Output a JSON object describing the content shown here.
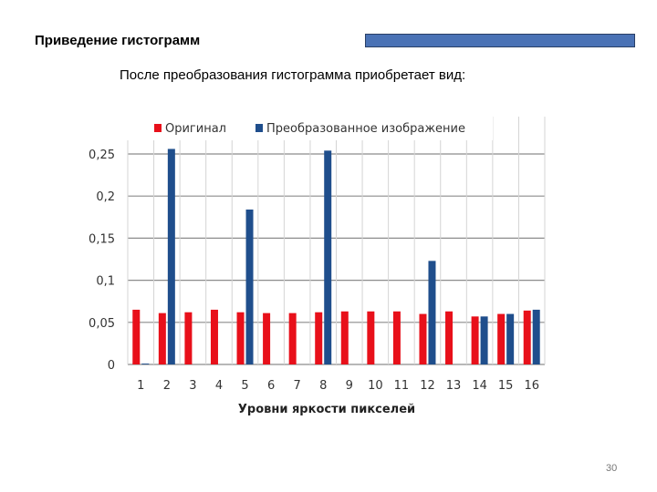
{
  "slide": {
    "title": "Приведение гистограмм",
    "subtitle": "После преобразования гистограмма приобретает вид:",
    "page_number": "30"
  },
  "colors": {
    "original": "#e8101a",
    "transformed": "#1f4e8c",
    "title_bar": "#4a72b5"
  },
  "chart_data": {
    "type": "bar",
    "categories": [
      "1",
      "2",
      "3",
      "4",
      "5",
      "6",
      "7",
      "8",
      "9",
      "10",
      "11",
      "12",
      "13",
      "14",
      "15",
      "16"
    ],
    "series": [
      {
        "name": "Оригинал",
        "values": [
          0.065,
          0.061,
          0.062,
          0.065,
          0.062,
          0.061,
          0.061,
          0.062,
          0.063,
          0.063,
          0.063,
          0.06,
          0.063,
          0.057,
          0.06,
          0.064
        ]
      },
      {
        "name": "Преобразованное изображение",
        "values": [
          0.001,
          0.256,
          0,
          0,
          0.184,
          0,
          0,
          0.254,
          0,
          0,
          0,
          0.123,
          0,
          0.057,
          0.06,
          0.065
        ]
      }
    ],
    "xlabel": "Уровни яркости пикселей",
    "ylabel": "",
    "ylim": [
      0,
      0.27
    ],
    "yticks": [
      "0",
      "0,05",
      "0,1",
      "0,15",
      "0,2",
      "0,25"
    ],
    "grid": true,
    "legend_position": "top"
  }
}
